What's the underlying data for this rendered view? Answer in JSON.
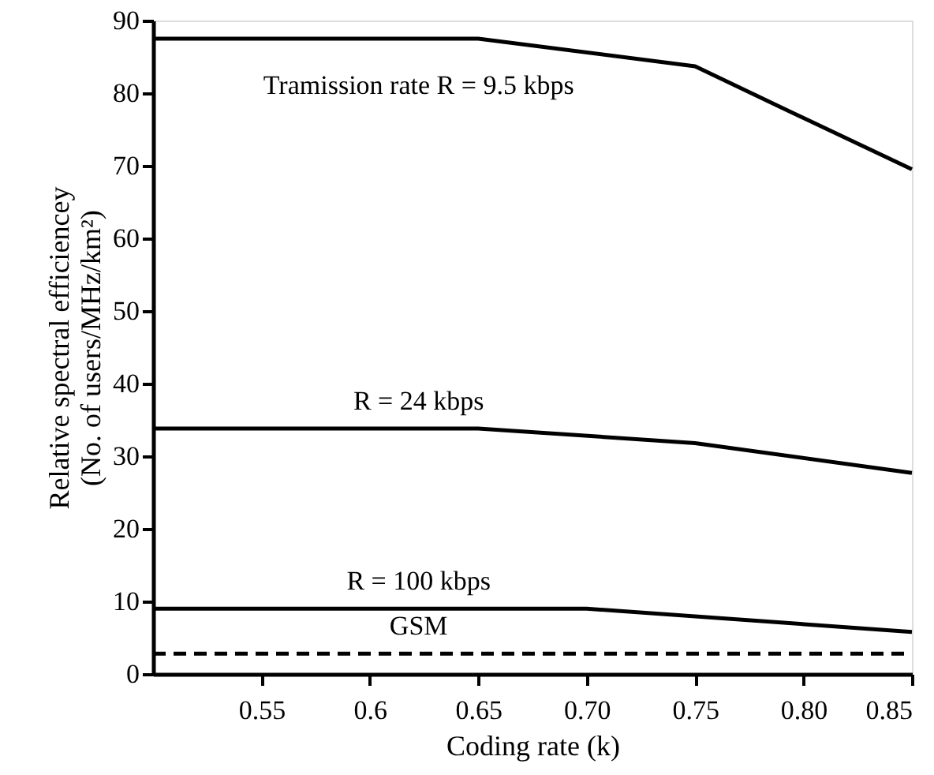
{
  "chart_data": {
    "type": "line",
    "xlabel": "Coding rate (k)",
    "ylabel": "Relative spectral efficiencey\n(No. of users/MHz/km²)",
    "xlim": [
      0.5,
      0.85
    ],
    "xticks": [
      0.55,
      0.6,
      0.65,
      {
        "value": 0.7,
        "label": "0.70"
      },
      0.75,
      {
        "value": 0.8,
        "label": "0.80"
      },
      0.85
    ],
    "ylim": [
      0,
      90
    ],
    "yticks": [
      0,
      10,
      20,
      30,
      40,
      50,
      60,
      70,
      80,
      90
    ],
    "grid": false,
    "marker": "none",
    "series": [
      {
        "color": "#000000",
        "line_style": "solid",
        "x": [
          0.5,
          0.65,
          0.75,
          0.79,
          0.85
        ],
        "values": [
          87.5,
          87.5,
          83.7,
          78,
          69.5
        ]
      },
      {
        "color": "#000000",
        "line_style": "solid",
        "x": [
          0.5,
          0.65,
          0.75,
          0.85
        ],
        "values": [
          33.8,
          33.8,
          31.8,
          27.7
        ]
      },
      {
        "color": "#000000",
        "line_style": "solid",
        "x": [
          0.5,
          0.7,
          0.85
        ],
        "values": [
          9,
          9,
          5.8
        ]
      },
      {
        "color": "#000000",
        "line_style": "dashed",
        "x": [
          0.5,
          0.85
        ],
        "values": [
          2.8,
          2.8
        ]
      }
    ],
    "annotations": [
      "Tramission rate R = 9.5 kbps",
      "R = 24 kbps",
      "R = 100 kbps",
      "GSM"
    ]
  }
}
